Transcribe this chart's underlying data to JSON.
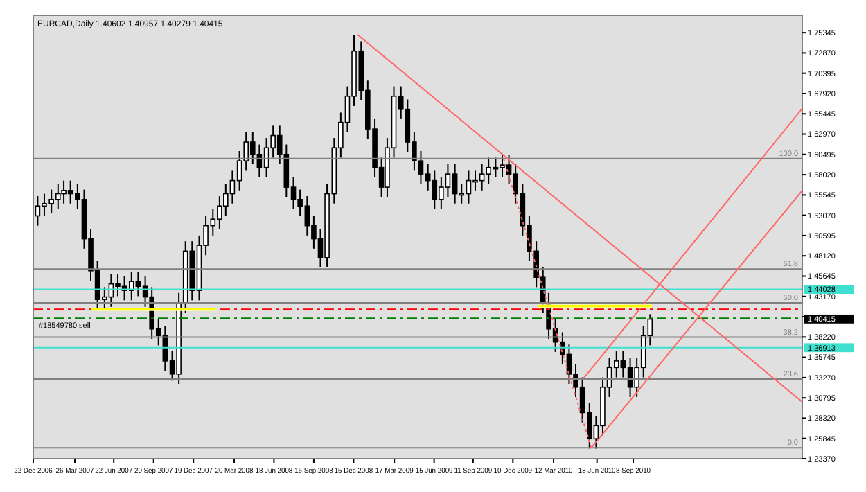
{
  "chart_data": {
    "type": "candlestick",
    "title": "EURCAD,Daily  1.40602 1.40957 1.40279 1.40415",
    "color": "#000000",
    "x": [
      "2007-01-01",
      "2007-01-16",
      "2007-02-01",
      "2007-02-16",
      "2007-03-01",
      "2007-03-16",
      "2007-04-01",
      "2007-04-16",
      "2007-05-01",
      "2007-05-16",
      "2007-06-01",
      "2007-06-16",
      "2007-07-01",
      "2007-07-16",
      "2007-08-01",
      "2007-08-16",
      "2007-09-01",
      "2007-09-16",
      "2007-10-01",
      "2007-10-16",
      "2007-11-01",
      "2007-11-16",
      "2007-12-01",
      "2007-12-16",
      "2008-01-01",
      "2008-01-16",
      "2008-02-01",
      "2008-02-16",
      "2008-03-01",
      "2008-03-16",
      "2008-04-01",
      "2008-04-16",
      "2008-05-01",
      "2008-05-16",
      "2008-06-01",
      "2008-06-16",
      "2008-07-01",
      "2008-07-16",
      "2008-08-01",
      "2008-08-16",
      "2008-09-01",
      "2008-09-16",
      "2008-10-01",
      "2008-10-16",
      "2008-11-01",
      "2008-11-16",
      "2008-12-01",
      "2008-12-16",
      "2009-01-01",
      "2009-01-16",
      "2009-02-01",
      "2009-02-16",
      "2009-03-01",
      "2009-03-16",
      "2009-04-01",
      "2009-04-16",
      "2009-05-01",
      "2009-05-16",
      "2009-06-01",
      "2009-06-16",
      "2009-07-01",
      "2009-07-16",
      "2009-08-01",
      "2009-08-16",
      "2009-09-01",
      "2009-09-16",
      "2009-10-01",
      "2009-10-16",
      "2009-11-01",
      "2009-11-16",
      "2009-12-01",
      "2009-12-16",
      "2010-01-01",
      "2010-01-16",
      "2010-02-01",
      "2010-02-16",
      "2010-03-01",
      "2010-03-16",
      "2010-04-01",
      "2010-04-16",
      "2010-05-01",
      "2010-05-16",
      "2010-06-01",
      "2010-06-16",
      "2010-07-01",
      "2010-07-16",
      "2010-08-01",
      "2010-08-16",
      "2010-09-01",
      "2010-09-16",
      "2010-10-01",
      "2010-10-16"
    ],
    "ohlc": [
      [
        1.53,
        1.554,
        1.518,
        1.542
      ],
      [
        1.542,
        1.557,
        1.53,
        1.545
      ],
      [
        1.545,
        1.562,
        1.533,
        1.55
      ],
      [
        1.55,
        1.569,
        1.538,
        1.557
      ],
      [
        1.557,
        1.573,
        1.545,
        1.561
      ],
      [
        1.561,
        1.573,
        1.545,
        1.557
      ],
      [
        1.557,
        1.569,
        1.538,
        1.55
      ],
      [
        1.55,
        1.562,
        1.49,
        1.502
      ],
      [
        1.502,
        1.514,
        1.451,
        1.463
      ],
      [
        1.463,
        1.475,
        1.416,
        1.428
      ],
      [
        1.428,
        1.443,
        1.416,
        1.431
      ],
      [
        1.431,
        1.459,
        1.419,
        1.447
      ],
      [
        1.447,
        1.459,
        1.432,
        1.444
      ],
      [
        1.444,
        1.456,
        1.427,
        1.439
      ],
      [
        1.439,
        1.462,
        1.427,
        1.45
      ],
      [
        1.45,
        1.462,
        1.432,
        1.444
      ],
      [
        1.444,
        1.456,
        1.419,
        1.431
      ],
      [
        1.431,
        1.443,
        1.38,
        1.392
      ],
      [
        1.392,
        1.404,
        1.372,
        1.384
      ],
      [
        1.384,
        1.396,
        1.341,
        1.353
      ],
      [
        1.353,
        1.365,
        1.329,
        1.337
      ],
      [
        1.337,
        1.436,
        1.325,
        1.424
      ],
      [
        1.424,
        1.499,
        1.412,
        1.487
      ],
      [
        1.487,
        1.499,
        1.427,
        1.439
      ],
      [
        1.439,
        1.506,
        1.427,
        1.494
      ],
      [
        1.494,
        1.53,
        1.482,
        1.518
      ],
      [
        1.518,
        1.538,
        1.506,
        1.526
      ],
      [
        1.526,
        1.554,
        1.514,
        1.542
      ],
      [
        1.542,
        1.569,
        1.53,
        1.557
      ],
      [
        1.557,
        1.585,
        1.545,
        1.573
      ],
      [
        1.573,
        1.609,
        1.561,
        1.597
      ],
      [
        1.597,
        1.632,
        1.585,
        1.62
      ],
      [
        1.62,
        1.632,
        1.593,
        1.605
      ],
      [
        1.605,
        1.617,
        1.577,
        1.589
      ],
      [
        1.589,
        1.625,
        1.577,
        1.613
      ],
      [
        1.613,
        1.64,
        1.601,
        1.628
      ],
      [
        1.628,
        1.64,
        1.593,
        1.605
      ],
      [
        1.605,
        1.617,
        1.553,
        1.565
      ],
      [
        1.565,
        1.577,
        1.538,
        1.55
      ],
      [
        1.55,
        1.562,
        1.53,
        1.542
      ],
      [
        1.542,
        1.554,
        1.506,
        1.518
      ],
      [
        1.518,
        1.53,
        1.49,
        1.502
      ],
      [
        1.502,
        1.514,
        1.467,
        1.479
      ],
      [
        1.479,
        1.569,
        1.467,
        1.557
      ],
      [
        1.557,
        1.625,
        1.545,
        1.613
      ],
      [
        1.613,
        1.656,
        1.601,
        1.644
      ],
      [
        1.644,
        1.688,
        1.632,
        1.676
      ],
      [
        1.676,
        1.751,
        1.664,
        1.731
      ],
      [
        1.731,
        1.743,
        1.671,
        1.683
      ],
      [
        1.683,
        1.695,
        1.624,
        1.636
      ],
      [
        1.636,
        1.648,
        1.577,
        1.589
      ],
      [
        1.589,
        1.601,
        1.553,
        1.565
      ],
      [
        1.565,
        1.625,
        1.553,
        1.613
      ],
      [
        1.613,
        1.688,
        1.601,
        1.676
      ],
      [
        1.676,
        1.688,
        1.648,
        1.66
      ],
      [
        1.66,
        1.672,
        1.608,
        1.62
      ],
      [
        1.62,
        1.632,
        1.585,
        1.597
      ],
      [
        1.597,
        1.609,
        1.569,
        1.581
      ],
      [
        1.581,
        1.593,
        1.561,
        1.573
      ],
      [
        1.573,
        1.585,
        1.538,
        1.55
      ],
      [
        1.55,
        1.577,
        1.538,
        1.565
      ],
      [
        1.565,
        1.593,
        1.553,
        1.581
      ],
      [
        1.581,
        1.593,
        1.545,
        1.557
      ],
      [
        1.557,
        1.569,
        1.545,
        1.557
      ],
      [
        1.557,
        1.585,
        1.545,
        1.573
      ],
      [
        1.573,
        1.585,
        1.561,
        1.573
      ],
      [
        1.573,
        1.593,
        1.561,
        1.581
      ],
      [
        1.581,
        1.601,
        1.569,
        1.589
      ],
      [
        1.589,
        1.601,
        1.577,
        1.589
      ],
      [
        1.589,
        1.604,
        1.577,
        1.592
      ],
      [
        1.592,
        1.604,
        1.569,
        1.581
      ],
      [
        1.581,
        1.593,
        1.545,
        1.557
      ],
      [
        1.557,
        1.569,
        1.506,
        1.518
      ],
      [
        1.518,
        1.53,
        1.475,
        1.487
      ],
      [
        1.487,
        1.499,
        1.443,
        1.455
      ],
      [
        1.455,
        1.467,
        1.412,
        1.424
      ],
      [
        1.424,
        1.436,
        1.38,
        1.392
      ],
      [
        1.392,
        1.404,
        1.364,
        1.376
      ],
      [
        1.376,
        1.388,
        1.349,
        1.361
      ],
      [
        1.361,
        1.373,
        1.325,
        1.337
      ],
      [
        1.337,
        1.349,
        1.309,
        1.321
      ],
      [
        1.321,
        1.333,
        1.278,
        1.29
      ],
      [
        1.29,
        1.302,
        1.246,
        1.258
      ],
      [
        1.258,
        1.286,
        1.246,
        1.274
      ],
      [
        1.274,
        1.333,
        1.262,
        1.321
      ],
      [
        1.321,
        1.357,
        1.309,
        1.345
      ],
      [
        1.345,
        1.365,
        1.333,
        1.353
      ],
      [
        1.353,
        1.365,
        1.333,
        1.345
      ],
      [
        1.345,
        1.357,
        1.309,
        1.321
      ],
      [
        1.321,
        1.357,
        1.309,
        1.345
      ],
      [
        1.345,
        1.396,
        1.333,
        1.384
      ],
      [
        1.384,
        1.41,
        1.372,
        1.404
      ]
    ],
    "series": [
      {
        "type": "line",
        "x": [
          "2008-12-24",
          "2011-09-25"
        ],
        "values": [
          1.751,
          1.303
        ],
        "color": "#ff6666",
        "line_style": "solid"
      },
      {
        "type": "line",
        "x": [
          "2009-11-19",
          "2010-06-05"
        ],
        "values": [
          1.6,
          1.247
        ],
        "color": "#ff6666",
        "line_style": "dotted"
      },
      {
        "type": "line",
        "x": [
          "2010-06-05",
          "2011-09-25"
        ],
        "values": [
          1.247,
          1.561
        ],
        "color": "#ff6666",
        "line_style": "solid"
      },
      {
        "type": "line",
        "x": [
          "2010-05-19",
          "2011-09-25"
        ],
        "values": [
          1.332,
          1.661
        ],
        "color": "#ff6666",
        "line_style": "solid"
      },
      {
        "type": "line",
        "x": [
          "2007-05-01",
          "2008-02-08"
        ],
        "values": [
          1.416,
          1.416
        ],
        "lower": [
          1.414,
          1.414
        ],
        "upper": [
          1.418,
          1.418
        ],
        "color": "#ffff00",
        "line_style": "solid"
      },
      {
        "type": "line",
        "x": [
          "2010-02-04",
          "2010-10-20"
        ],
        "values": [
          1.42,
          1.42
        ],
        "lower": [
          1.418,
          1.418
        ],
        "upper": [
          1.422,
          1.422
        ],
        "color": "#ffff00",
        "line_style": "solid"
      }
    ],
    "ref_lines": [
      {
        "axis": "y",
        "value": 1.6,
        "color": "#808080",
        "line_style": "solid"
      },
      {
        "axis": "y",
        "value": 1.465,
        "color": "#808080",
        "line_style": "solid"
      },
      {
        "axis": "y",
        "value": 1.424,
        "color": "#808080",
        "line_style": "solid"
      },
      {
        "axis": "y",
        "value": 1.382,
        "color": "#808080",
        "line_style": "solid"
      },
      {
        "axis": "y",
        "value": 1.331,
        "color": "#808080",
        "line_style": "solid"
      },
      {
        "axis": "y",
        "value": 1.247,
        "color": "#808080",
        "line_style": "solid"
      },
      {
        "axis": "y",
        "value": 1.44028,
        "label": "1.44028",
        "color": "#40e0d0",
        "line_style": "solid"
      },
      {
        "axis": "y",
        "value": 1.36913,
        "label": "1.36913",
        "color": "#40e0d0",
        "line_style": "solid"
      },
      {
        "axis": "y",
        "value": 1.416,
        "color": "#ff0000",
        "line_style": "dashed"
      },
      {
        "axis": "y",
        "value": 1.405,
        "label": "#18549780 sell",
        "color": "#008000",
        "line_style": "dashed"
      }
    ],
    "annotations": [
      {
        "text": "100.0",
        "x": "2011-09-25",
        "y": 1.6
      },
      {
        "text": "61.8",
        "x": "2011-09-25",
        "y": 1.465
      },
      {
        "text": "50.0",
        "x": "2011-09-25",
        "y": 1.424
      },
      {
        "text": "38.2",
        "x": "2011-09-25",
        "y": 1.382
      },
      {
        "text": "23.6",
        "x": "2011-09-25",
        "y": 1.331
      },
      {
        "text": "0.0",
        "x": "2011-09-25",
        "y": 1.247
      },
      "1.40415"
    ],
    "xlim": [
      "2006-12-22",
      "2011-09-25"
    ],
    "ylim": [
      1.2337,
      1.7747
    ],
    "xticks": [
      {
        "value": "2006-12-22",
        "label": "22 Dec 2006"
      },
      {
        "value": "2007-03-26",
        "label": "26 Mar 2007"
      },
      {
        "value": "2007-06-22",
        "label": "22 Jun 2007"
      },
      {
        "value": "2007-09-20",
        "label": "20 Sep 2007"
      },
      {
        "value": "2007-12-19",
        "label": "19 Dec 2007"
      },
      {
        "value": "2008-03-20",
        "label": "20 Mar 2008"
      },
      {
        "value": "2008-06-18",
        "label": "18 Jun 2008"
      },
      {
        "value": "2008-09-16",
        "label": "16 Sep 2008"
      },
      {
        "value": "2008-12-15",
        "label": "15 Dec 2008"
      },
      {
        "value": "2009-03-17",
        "label": "17 Mar 2009"
      },
      {
        "value": "2009-06-15",
        "label": "15 Jun 2009"
      },
      {
        "value": "2009-09-11",
        "label": "11 Sep 2009"
      },
      {
        "value": "2009-12-10",
        "label": "10 Dec 2009"
      },
      {
        "value": "2010-03-12",
        "label": "12 Mar 2010"
      },
      {
        "value": "2010-06-18",
        "label": "18 Jun 2010"
      },
      {
        "value": "2010-09-08",
        "label": "8 Sep 2010"
      }
    ],
    "yticks": [
      {
        "value": 1.2337,
        "label": "1.23370"
      },
      {
        "value": 1.25845,
        "label": "1.25845"
      },
      {
        "value": 1.2832,
        "label": "1.28320"
      },
      {
        "value": 1.30795,
        "label": "1.30795"
      },
      {
        "value": 1.3327,
        "label": "1.33270"
      },
      {
        "value": 1.35745,
        "label": "1.35745"
      },
      {
        "value": 1.3822,
        "label": "1.38220"
      },
      {
        "value": 1.40695,
        "label": null
      },
      {
        "value": 1.4317,
        "label": "1.43170"
      },
      {
        "value": 1.45645,
        "label": "1.45645"
      },
      {
        "value": 1.4812,
        "label": "1.48120"
      },
      {
        "value": 1.50595,
        "label": "1.50595"
      },
      {
        "value": 1.5307,
        "label": "1.53070"
      },
      {
        "value": 1.55545,
        "label": "1.55545"
      },
      {
        "value": 1.5802,
        "label": "1.58020"
      },
      {
        "value": 1.60495,
        "label": "1.60495"
      },
      {
        "value": 1.6297,
        "label": "1.62970"
      },
      {
        "value": 1.65445,
        "label": "1.65445"
      },
      {
        "value": 1.6792,
        "label": "1.67920"
      },
      {
        "value": 1.70395,
        "label": "1.70395"
      },
      {
        "value": 1.7287,
        "label": "1.72870"
      },
      {
        "value": 1.75345,
        "label": "1.75345"
      }
    ]
  }
}
